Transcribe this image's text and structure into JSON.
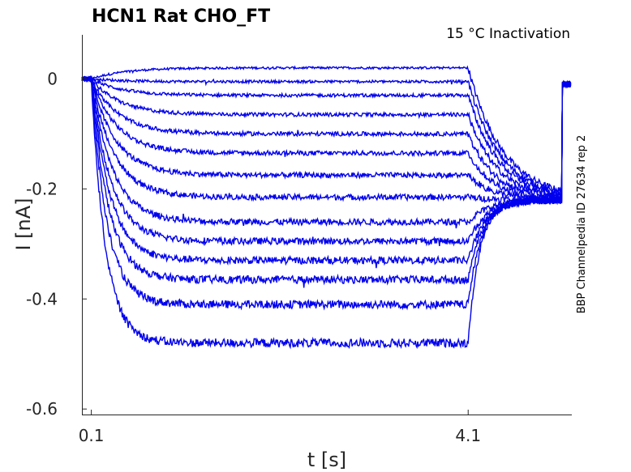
{
  "chart_data": {
    "type": "line",
    "title": "HCN1  Rat  CHO_FT",
    "annotation": "15 °C  Inactivation",
    "side_label": "BBP Channelpedia ID 27634 rep 2",
    "xlabel": "t [s]",
    "ylabel": "I [nA]",
    "xlim": [
      0.0,
      5.2
    ],
    "ylim": [
      -0.61,
      0.08
    ],
    "xticks": [
      0.1,
      4.1
    ],
    "xtick_labels": [
      "0.1",
      "4.1"
    ],
    "yticks": [
      0,
      -0.2,
      -0.4,
      -0.6
    ],
    "ytick_labels": [
      "0",
      "-0.2",
      "-0.4",
      "-0.6"
    ],
    "grid": false,
    "line_color": "#0000ee",
    "t_start": 0.1,
    "t_step_end": 4.1,
    "t_end": 5.1,
    "tail_steady_state": -0.22,
    "series": [
      {
        "steady_state": 0.02
      },
      {
        "steady_state": -0.005
      },
      {
        "steady_state": -0.03
      },
      {
        "steady_state": -0.065
      },
      {
        "steady_state": -0.1
      },
      {
        "steady_state": -0.135
      },
      {
        "steady_state": -0.175
      },
      {
        "steady_state": -0.215
      },
      {
        "steady_state": -0.26
      },
      {
        "steady_state": -0.295
      },
      {
        "steady_state": -0.33
      },
      {
        "steady_state": -0.365
      },
      {
        "steady_state": -0.41
      },
      {
        "steady_state": -0.48
      }
    ]
  }
}
